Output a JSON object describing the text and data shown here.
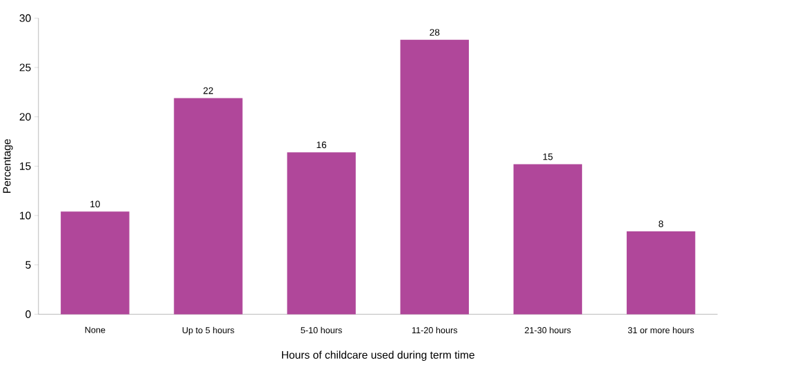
{
  "chart_data": {
    "type": "bar",
    "xlabel": "Hours of childcare used during term time",
    "ylabel": "Percentage",
    "categories": [
      "None",
      "Up to 5 hours",
      "5-10 hours",
      "11-20 hours",
      "21-30 hours",
      "31 or more hours"
    ],
    "values": [
      10.4,
      21.9,
      16.4,
      27.8,
      15.2,
      8.4
    ],
    "value_labels": [
      "10",
      "22",
      "16",
      "28",
      "15",
      "8"
    ],
    "color": "#b0479a",
    "ylim": [
      0,
      30
    ],
    "yticks": [
      0,
      5,
      10,
      15,
      20,
      25,
      30
    ]
  }
}
